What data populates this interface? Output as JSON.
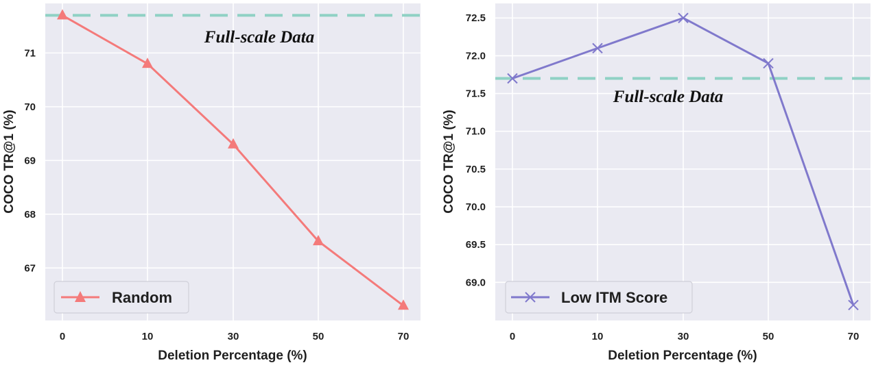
{
  "chart_data": [
    {
      "type": "line",
      "categories": [
        "0",
        "10",
        "30",
        "50",
        "70"
      ],
      "series": [
        {
          "name": "Random",
          "values": [
            71.7,
            70.8,
            69.3,
            67.5,
            66.3
          ],
          "color": "#f47a7a",
          "marker": "triangle"
        }
      ],
      "reference_line": {
        "value": 71.7,
        "label": "Full-scale Data",
        "color": "#8fd1c4",
        "style": "dashed"
      },
      "xlabel": "Deletion Percentage (%)",
      "ylabel": "COCO TR@1 (%)",
      "yticks": [
        "67",
        "68",
        "69",
        "70",
        "71"
      ],
      "ylim": [
        66.1,
        71.82
      ],
      "grid": true,
      "legend_position": "lower-left",
      "background": "#eaeaf2"
    },
    {
      "type": "line",
      "categories": [
        "0",
        "10",
        "30",
        "50",
        "70"
      ],
      "series": [
        {
          "name": "Low ITM Score",
          "values": [
            71.7,
            72.1,
            72.5,
            71.9,
            68.7
          ],
          "color": "#8079cc",
          "marker": "x"
        }
      ],
      "reference_line": {
        "value": 71.7,
        "label": "Full-scale Data",
        "color": "#8fd1c4",
        "style": "dashed"
      },
      "xlabel": "Deletion Percentage (%)",
      "ylabel": "COCO TR@1 (%)",
      "yticks": [
        "69.0",
        "69.5",
        "70.0",
        "70.5",
        "71.0",
        "71.5",
        "72.0",
        "72.5"
      ],
      "ylim": [
        68.55,
        72.62
      ],
      "grid": true,
      "legend_position": "lower-left",
      "background": "#eaeaf2"
    }
  ]
}
